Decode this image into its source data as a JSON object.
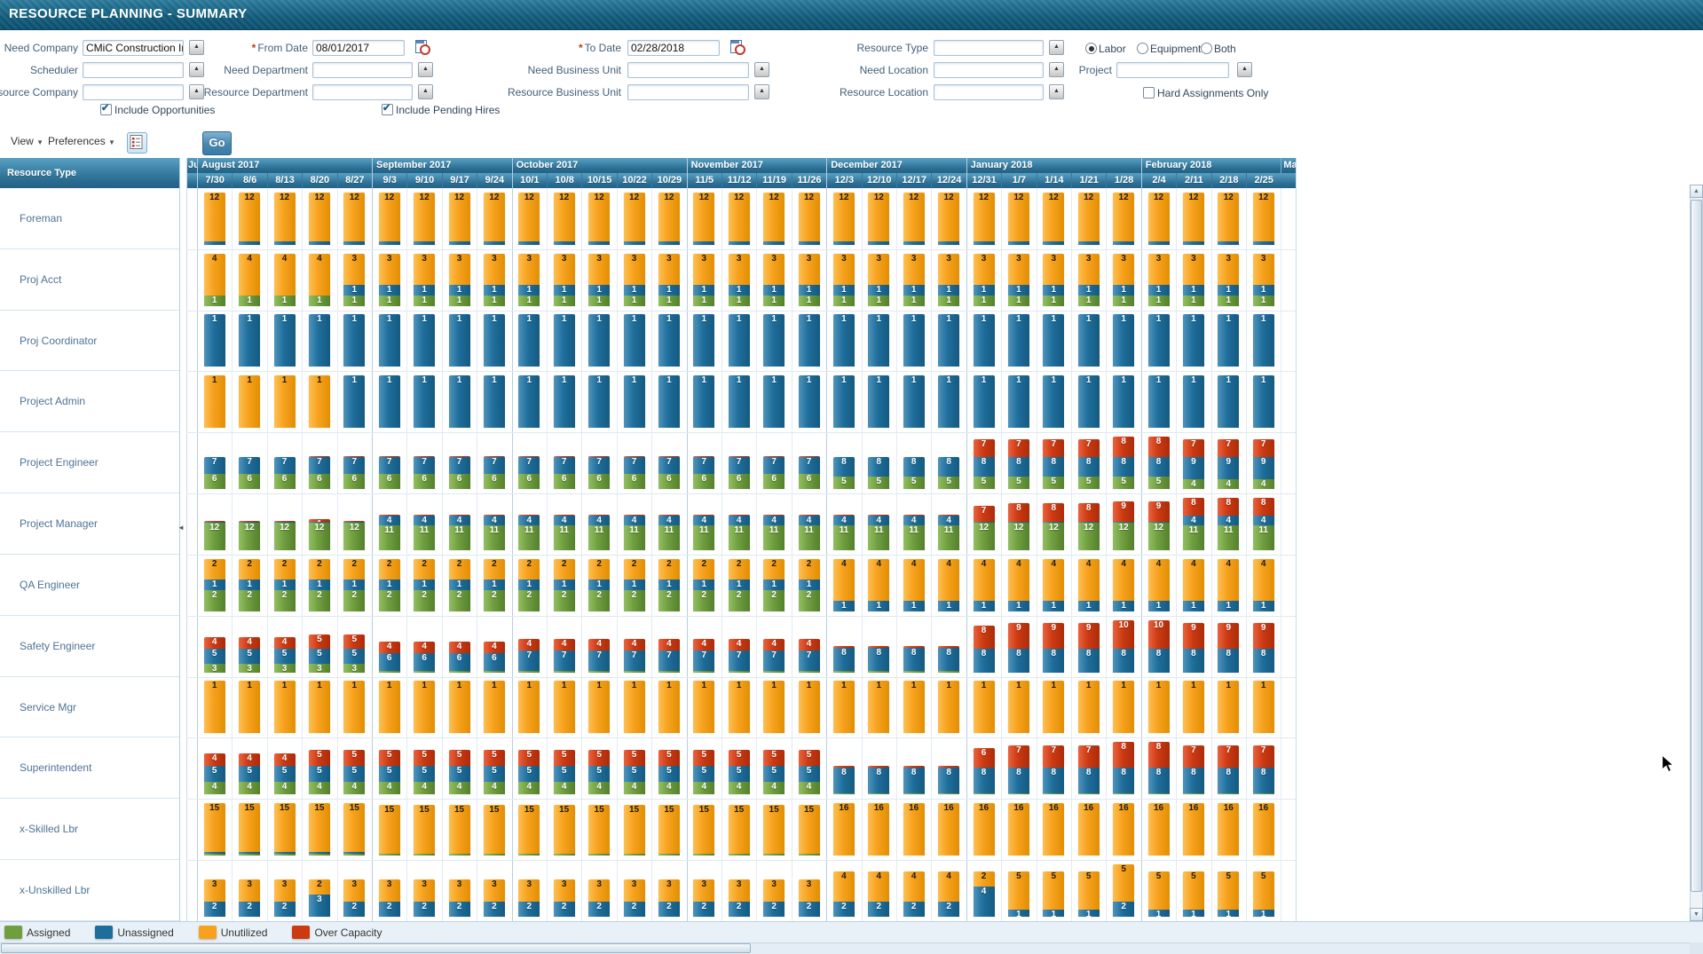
{
  "title": "RESOURCE PLANNING - SUMMARY",
  "filters": {
    "fields": [
      {
        "label": "Need Company",
        "value": "CMiC Construction Inc.",
        "type": "lov",
        "col": 1,
        "row": 1,
        "required": false
      },
      {
        "label": "Scheduler",
        "value": "",
        "type": "lov",
        "col": 1,
        "row": 2,
        "required": false
      },
      {
        "label": "Resource Company",
        "value": "",
        "type": "lov",
        "col": 1,
        "row": 3,
        "required": false
      },
      {
        "label": "From Date",
        "value": "08/01/2017",
        "type": "date",
        "col": 2,
        "row": 1,
        "required": true
      },
      {
        "label": "Need Department",
        "value": "",
        "type": "lov",
        "col": 2,
        "row": 2,
        "required": false
      },
      {
        "label": "Resource Department",
        "value": "",
        "type": "lov",
        "col": 2,
        "row": 3,
        "required": false
      },
      {
        "label": "To Date",
        "value": "02/28/2018",
        "type": "date",
        "col": 3,
        "row": 1,
        "required": true
      },
      {
        "label": "Need Business Unit",
        "value": "",
        "type": "lov",
        "col": 3,
        "row": 2,
        "required": false
      },
      {
        "label": "Resource Business Unit",
        "value": "",
        "type": "lov",
        "col": 3,
        "row": 3,
        "required": false
      },
      {
        "label": "Resource Type",
        "value": "",
        "type": "lov",
        "col": 4,
        "row": 1,
        "required": false
      },
      {
        "label": "Need Location",
        "value": "",
        "type": "lov",
        "col": 4,
        "row": 2,
        "required": false
      },
      {
        "label": "Resource Location",
        "value": "",
        "type": "lov",
        "col": 4,
        "row": 3,
        "required": false
      },
      {
        "label": "Project",
        "value": "",
        "type": "lov",
        "col": 5,
        "row": 2,
        "required": false
      }
    ],
    "radios": [
      {
        "label": "Labor",
        "selected": true
      },
      {
        "label": "Equipment",
        "selected": false
      },
      {
        "label": "Both",
        "selected": false
      }
    ],
    "checkboxes": [
      {
        "label": "Include Opportunities",
        "checked": true
      },
      {
        "label": "Include Pending Hires",
        "checked": true
      },
      {
        "label": "Hard Assignments Only",
        "checked": false
      }
    ]
  },
  "toolbar": {
    "view_label": "View",
    "preferences_label": "Preferences",
    "go_label": "Go"
  },
  "legend": [
    {
      "key": "assigned",
      "label": "Assigned",
      "color": "#6f9e3f"
    },
    {
      "key": "unassigned",
      "label": "Unassigned",
      "color": "#1e6e9c"
    },
    {
      "key": "unutilized",
      "label": "Unutilized",
      "color": "#f7a11c"
    },
    {
      "key": "over_capacity",
      "label": "Over Capacity",
      "color": "#cc3a12"
    }
  ],
  "chart_data": {
    "type": "bar",
    "stacked": true,
    "left_header": "Resource Type",
    "legend_position": "bottom",
    "series_order_bottom_to_top": [
      "assigned",
      "unassigned",
      "unutilized",
      "over_capacity"
    ],
    "clipped_month_left": "Ju",
    "clipped_month_right": "Mar",
    "months": [
      {
        "label": "August 2017",
        "weeks": 5
      },
      {
        "label": "September 2017",
        "weeks": 4
      },
      {
        "label": "October 2017",
        "weeks": 5
      },
      {
        "label": "November 2017",
        "weeks": 4
      },
      {
        "label": "December 2017",
        "weeks": 4
      },
      {
        "label": "January 2018",
        "weeks": 5
      },
      {
        "label": "February 2018",
        "weeks": 4
      }
    ],
    "weeks": [
      "7/30",
      "8/6",
      "8/13",
      "8/20",
      "8/27",
      "9/3",
      "9/10",
      "9/17",
      "9/24",
      "10/1",
      "10/8",
      "10/15",
      "10/22",
      "10/29",
      "11/5",
      "11/12",
      "11/19",
      "11/26",
      "12/3",
      "12/10",
      "12/17",
      "12/24",
      "12/31",
      "1/7",
      "1/14",
      "1/21",
      "1/28",
      "2/4",
      "2/11",
      "2/18",
      "2/25"
    ],
    "values_note": "runs give [assigned,unassigned,unutilized,over_capacity] per week; fractional values are thin unlabeled slivers",
    "rows": [
      {
        "name": "Foreman",
        "runs": [
          {
            "count": 31,
            "values": [
              0,
              0.8,
              12,
              0
            ]
          }
        ]
      },
      {
        "name": "Proj Acct",
        "runs": [
          {
            "count": 4,
            "values": [
              1,
              0,
              4,
              0
            ]
          },
          {
            "count": 27,
            "values": [
              1,
              1,
              3,
              0
            ]
          }
        ]
      },
      {
        "name": "Proj Coordinator",
        "runs": [
          {
            "count": 31,
            "values": [
              0,
              1,
              0,
              0
            ]
          }
        ]
      },
      {
        "name": "Project Admin",
        "runs": [
          {
            "count": 4,
            "values": [
              0,
              0,
              1,
              0
            ]
          },
          {
            "count": 27,
            "values": [
              0,
              1,
              0,
              0
            ]
          }
        ]
      },
      {
        "name": "Project Engineer",
        "runs": [
          {
            "count": 3,
            "values": [
              6,
              7,
              0,
              0
            ]
          },
          {
            "count": 15,
            "values": [
              6,
              7,
              0,
              0.4
            ]
          },
          {
            "count": 4,
            "values": [
              5,
              8,
              0,
              0
            ]
          },
          {
            "count": 4,
            "values": [
              5,
              8,
              0,
              7
            ]
          },
          {
            "count": 2,
            "values": [
              5,
              8,
              0,
              8
            ]
          },
          {
            "count": 3,
            "values": [
              4,
              9,
              0,
              7
            ]
          }
        ]
      },
      {
        "name": "Project Manager",
        "runs": [
          {
            "count": 3,
            "values": [
              12,
              0.4,
              0,
              0.5
            ]
          },
          {
            "count": 1,
            "values": [
              12,
              0.4,
              0,
              1.3
            ]
          },
          {
            "count": 1,
            "values": [
              12,
              0.4,
              0,
              0.5
            ]
          },
          {
            "count": 17,
            "values": [
              11,
              4,
              0,
              0.4
            ]
          },
          {
            "count": 1,
            "values": [
              12,
              0.5,
              0,
              7
            ]
          },
          {
            "count": 3,
            "values": [
              12,
              0.5,
              0,
              8
            ]
          },
          {
            "count": 2,
            "values": [
              12,
              0.5,
              0,
              9
            ]
          },
          {
            "count": 3,
            "values": [
              11,
              4,
              0,
              8
            ]
          }
        ]
      },
      {
        "name": "QA Engineer",
        "runs": [
          {
            "count": 18,
            "values": [
              2,
              1,
              2,
              0
            ]
          },
          {
            "count": 13,
            "values": [
              0,
              1,
              4,
              0
            ]
          }
        ]
      },
      {
        "name": "Safety Engineer",
        "runs": [
          {
            "count": 3,
            "values": [
              3,
              5,
              0,
              4
            ]
          },
          {
            "count": 2,
            "values": [
              3,
              5,
              0,
              5
            ]
          },
          {
            "count": 4,
            "values": [
              0.5,
              6,
              0,
              4
            ]
          },
          {
            "count": 9,
            "values": [
              0.5,
              7,
              0,
              4
            ]
          },
          {
            "count": 4,
            "values": [
              0.5,
              8,
              0,
              0.5
            ]
          },
          {
            "count": 1,
            "values": [
              0,
              8,
              0,
              8
            ]
          },
          {
            "count": 3,
            "values": [
              0,
              8,
              0,
              9
            ]
          },
          {
            "count": 2,
            "values": [
              0,
              8,
              0,
              10
            ]
          },
          {
            "count": 3,
            "values": [
              0,
              8,
              0,
              9
            ]
          }
        ]
      },
      {
        "name": "Service Mgr",
        "runs": [
          {
            "count": 31,
            "values": [
              0,
              0,
              1,
              0
            ]
          }
        ]
      },
      {
        "name": "Superintendent",
        "runs": [
          {
            "count": 3,
            "values": [
              4,
              5,
              0,
              4
            ]
          },
          {
            "count": 15,
            "values": [
              4,
              5,
              0,
              5
            ]
          },
          {
            "count": 4,
            "values": [
              0.4,
              8,
              0,
              0.5
            ]
          },
          {
            "count": 1,
            "values": [
              0.4,
              8,
              0,
              6
            ]
          },
          {
            "count": 3,
            "values": [
              0.4,
              8,
              0,
              7
            ]
          },
          {
            "count": 2,
            "values": [
              0.4,
              8,
              0,
              8
            ]
          },
          {
            "count": 3,
            "values": [
              0.4,
              8,
              0,
              7
            ]
          }
        ]
      },
      {
        "name": "x-Skilled Lbr",
        "runs": [
          {
            "count": 5,
            "values": [
              0.6,
              0.5,
              15,
              0
            ]
          },
          {
            "count": 13,
            "values": [
              0.7,
              0,
              15,
              0
            ]
          },
          {
            "count": 13,
            "values": [
              0,
              0,
              16,
              0
            ]
          }
        ]
      },
      {
        "name": "x-Unskilled Lbr",
        "runs": [
          {
            "count": 3,
            "values": [
              0,
              2,
              3,
              0
            ]
          },
          {
            "count": 1,
            "values": [
              0,
              3,
              2,
              0
            ]
          },
          {
            "count": 14,
            "values": [
              0,
              2,
              3,
              0
            ]
          },
          {
            "count": 4,
            "values": [
              0,
              2,
              4,
              0
            ]
          },
          {
            "count": 1,
            "values": [
              0,
              4,
              2,
              0
            ]
          },
          {
            "count": 3,
            "values": [
              0,
              1,
              5,
              0
            ]
          },
          {
            "count": 1,
            "values": [
              0,
              2,
              5,
              0
            ]
          },
          {
            "count": 4,
            "values": [
              0,
              1,
              5,
              0
            ]
          }
        ]
      }
    ]
  }
}
